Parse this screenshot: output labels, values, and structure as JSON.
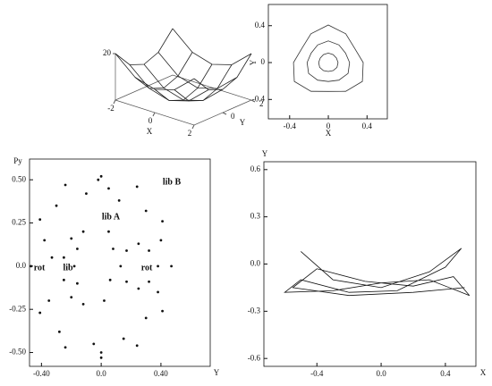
{
  "chart_data": [
    {
      "type": "surface",
      "x_label": "X",
      "y_label": "Y",
      "x": [
        -2,
        -1,
        0,
        1,
        2
      ],
      "y": [
        -2,
        -1,
        0,
        1,
        2
      ],
      "z": [
        [
          20,
          12.5,
          10,
          12.5,
          20
        ],
        [
          12.5,
          5,
          2.5,
          5,
          12.5
        ],
        [
          10,
          2.5,
          0,
          2.5,
          10
        ],
        [
          12.5,
          5,
          2.5,
          5,
          12.5
        ],
        [
          20,
          12.5,
          10,
          12.5,
          20
        ]
      ],
      "xticks": [
        -2,
        0,
        2
      ],
      "yticks": [
        0,
        2
      ],
      "zlim": [
        0,
        20
      ],
      "zticks": [
        20
      ],
      "color": "#222222"
    },
    {
      "type": "contour",
      "x_label": "X",
      "y_label": "Y",
      "xlim": [
        -0.62,
        0.61
      ],
      "ylim": [
        -0.61,
        0.63
      ],
      "xticks": [
        -0.4,
        0,
        0.4
      ],
      "yticks": [
        -0.4,
        0,
        0.4
      ],
      "color": "#333333",
      "series": [
        {
          "x": [
            0.1,
            0.084,
            0.05,
            0,
            -0.05,
            -0.084,
            -0.1,
            -0.089,
            -0.05,
            0,
            0.05,
            0.089
          ],
          "y": [
            0,
            0.049,
            0.087,
            0.103,
            0.087,
            0.049,
            0,
            -0.052,
            -0.087,
            -0.097,
            -0.087,
            -0.052
          ]
        },
        {
          "x": [
            0.22,
            0.178,
            0.11,
            0,
            -0.11,
            -0.178,
            -0.22,
            -0.204,
            -0.11,
            0,
            0.11,
            0.204
          ],
          "y": [
            0,
            0.102,
            0.191,
            0.235,
            0.191,
            0.102,
            0,
            -0.118,
            -0.191,
            -0.205,
            -0.191,
            -0.118
          ]
        },
        {
          "x": [
            0.36,
            0.271,
            0.18,
            0,
            -0.18,
            -0.271,
            -0.36,
            -0.352,
            -0.18,
            0,
            0.18,
            0.352
          ],
          "y": [
            0,
            0.157,
            0.312,
            0.407,
            0.312,
            0.157,
            0,
            -0.204,
            -0.312,
            -0.313,
            -0.312,
            -0.204
          ]
        }
      ]
    },
    {
      "type": "scatter",
      "x_label": "Y",
      "y_label": "Py",
      "xlim": [
        -0.48,
        0.73
      ],
      "ylim": [
        -0.58,
        0.62
      ],
      "xticks": [
        {
          "value": -0.4,
          "label": "-0.40"
        },
        {
          "value": 0,
          "label": "0.0"
        },
        {
          "value": 0.4,
          "label": "0.40"
        }
      ],
      "yticks": [
        {
          "value": -0.5,
          "label": "-0.50"
        },
        -0.25,
        {
          "value": 0,
          "label": "0.0"
        },
        0.25,
        {
          "value": 0.5,
          "label": "0.50"
        }
      ],
      "annotations": [
        "lib B",
        "lib A",
        "lib",
        "rot",
        "rot"
      ],
      "color": "#111111",
      "series": [
        {
          "x": [
            0.47,
            0.41,
            0.24,
            0,
            -0.24,
            -0.41,
            -0.47,
            -0.41,
            -0.24,
            0,
            0.24,
            0.41
          ],
          "y": [
            0,
            0.26,
            0.46,
            0.52,
            0.47,
            0.27,
            0,
            -0.27,
            -0.47,
            -0.53,
            -0.46,
            -0.26
          ]
        },
        {
          "x": [
            0.38,
            0.32,
            0.25,
            0.17,
            0.13,
            0.17,
            0.25,
            0.32
          ],
          "y": [
            0,
            0.09,
            0.13,
            0.09,
            0,
            -0.09,
            -0.13,
            -0.09
          ]
        },
        {
          "x": [
            -0.12,
            -0.2,
            -0.25,
            -0.25,
            -0.2,
            -0.12,
            -0.16,
            -0.18,
            -0.16
          ],
          "y": [
            0.2,
            0.16,
            0.05,
            -0.08,
            -0.18,
            -0.22,
            -0.1,
            0,
            0.1
          ]
        },
        {
          "x": [
            0.05,
            -0.1,
            -0.3,
            -0.38,
            -0.35,
            -0.28,
            -0.05,
            0.15,
            0.3,
            0.38,
            0.4,
            0.3,
            0.12,
            0.05,
            0.02,
            0.08,
            0.06,
            -0.33,
            -0.02,
            0
          ],
          "y": [
            0.45,
            0.42,
            0.35,
            0.15,
            -0.2,
            -0.38,
            -0.45,
            -0.42,
            -0.3,
            -0.15,
            0.15,
            0.32,
            0.38,
            0.2,
            -0.2,
            0.1,
            -0.08,
            0.05,
            0.5,
            -0.5
          ]
        }
      ]
    },
    {
      "type": "line",
      "x_label": "X",
      "y_label": "Y",
      "xlim": [
        -0.73,
        0.59
      ],
      "ylim": [
        -0.65,
        0.65
      ],
      "xticks": [
        -0.4,
        {
          "value": 0,
          "label": "0.0"
        },
        0.4
      ],
      "yticks": [
        -0.6,
        -0.3,
        {
          "value": 0,
          "label": "0.0"
        },
        0.3,
        0.6
      ],
      "color": "#111111",
      "series": [
        {
          "x": [
            -0.5,
            -0.3,
            0,
            0.3,
            0.5,
            0.4,
            0.1,
            -0.2,
            -0.5,
            -0.6,
            -0.3,
            0,
            0.3,
            0.55,
            0.45,
            0.2,
            -0.1,
            -0.4,
            -0.55,
            -0.2,
            0.2,
            0.52
          ],
          "y": [
            0.08,
            -0.1,
            -0.15,
            -0.05,
            0.1,
            -0.02,
            -0.17,
            -0.18,
            -0.1,
            -0.18,
            -0.17,
            -0.12,
            -0.1,
            -0.2,
            -0.08,
            -0.14,
            -0.11,
            -0.03,
            -0.15,
            -0.2,
            -0.18,
            -0.15
          ]
        }
      ]
    }
  ]
}
